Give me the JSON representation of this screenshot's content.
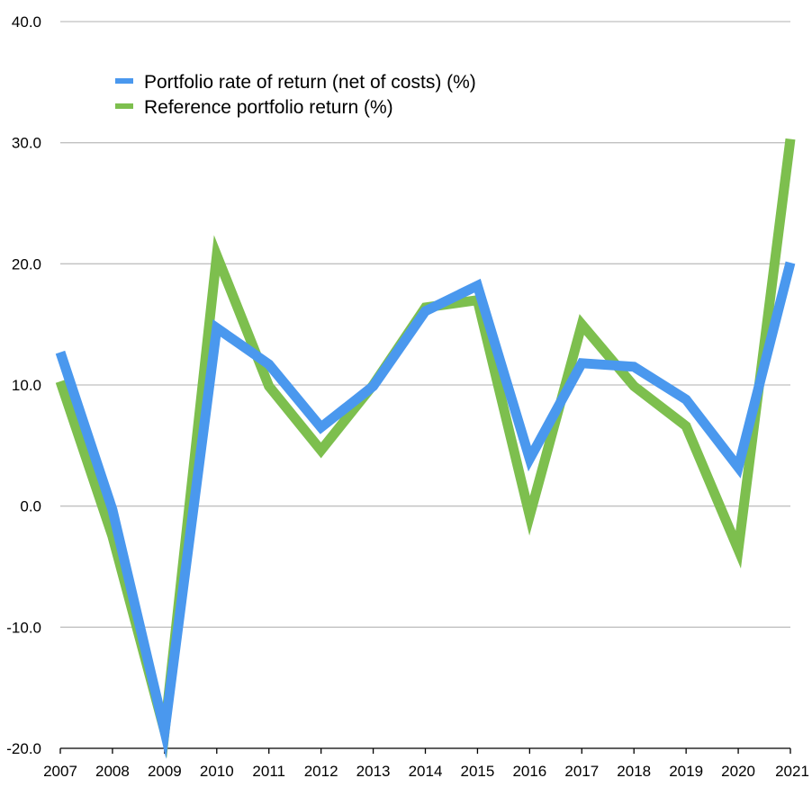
{
  "chart_data": {
    "type": "line",
    "title": "",
    "xlabel": "",
    "ylabel": "",
    "categories": [
      "2007",
      "2008",
      "2009",
      "2010",
      "2011",
      "2012",
      "2013",
      "2014",
      "2015",
      "2016",
      "2017",
      "2018",
      "2019",
      "2020",
      "2021"
    ],
    "yticks": [
      "-20.0",
      "-10.0",
      "0.0",
      "10.0",
      "20.0",
      "30.0",
      "40.0"
    ],
    "ylim": [
      -20,
      40
    ],
    "grid": true,
    "legend_position": "top-left",
    "series": [
      {
        "name": "Reference portfolio return (%)",
        "color": "#7dbf4e",
        "values": [
          10.3,
          -2.5,
          -18.6,
          20.7,
          9.9,
          4.6,
          10.0,
          16.4,
          17.0,
          -0.8,
          15.0,
          9.9,
          6.6,
          -3.6,
          30.3
        ]
      },
      {
        "name": "Portfolio rate of return (net of costs) (%)",
        "color": "#4a98ee",
        "values": [
          12.7,
          -0.3,
          -18.6,
          14.7,
          11.7,
          6.5,
          9.9,
          16.1,
          18.2,
          3.9,
          11.8,
          11.5,
          8.8,
          3.2,
          20.1
        ]
      }
    ]
  }
}
